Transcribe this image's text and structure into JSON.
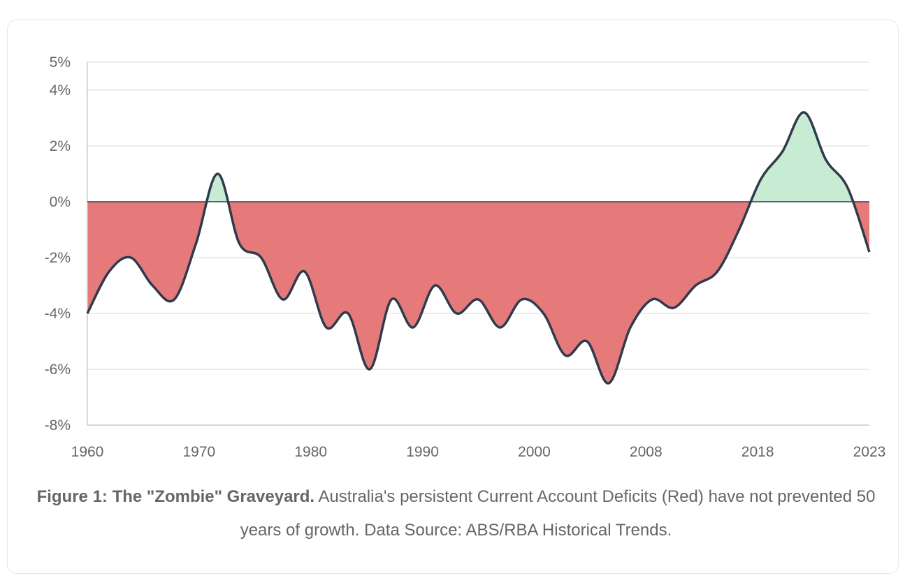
{
  "colors": {
    "deficit_fill": "#e57373",
    "surplus_fill": "#c8ecd3",
    "line": "#2f3a4c",
    "grid": "#e6e6e6",
    "axis": "#cccccc",
    "text": "#666666"
  },
  "caption": {
    "title": "Figure 1: The \"Zombie\" Graveyard.",
    "text": " Australia's persistent Current Account Deficits (Red) have not prevented 50 years of growth. Data Source: ABS/RBA Historical Trends."
  },
  "chart_data": {
    "type": "area",
    "x_tick_labels": [
      "1960",
      "1970",
      "1980",
      "1990",
      "2000",
      "2008",
      "2018",
      "2023"
    ],
    "y_tick_labels": [
      "5%",
      "4%",
      "2%",
      "0%",
      "-2%",
      "-4%",
      "-6%",
      "-8%"
    ],
    "y_ticks": [
      5,
      4,
      2,
      0,
      -2,
      -4,
      -6,
      -8
    ],
    "ylim": [
      -8,
      5
    ],
    "grid": true,
    "baseline": 0,
    "fill_rule": "red below 0, green above 0",
    "series": [
      {
        "values": [
          -4.0,
          -2.5,
          -2.0,
          -3.0,
          -3.5,
          -1.5,
          1.0,
          -1.5,
          -2.0,
          -3.5,
          -2.5,
          -4.5,
          -4.0,
          -6.0,
          -3.5,
          -4.5,
          -3.0,
          -4.0,
          -3.5,
          -4.5,
          -3.5,
          -4.0,
          -5.5,
          -5.0,
          -6.5,
          -4.5,
          -3.5,
          -3.8,
          -3.0,
          -2.5,
          -1.0,
          0.8,
          1.8,
          3.2,
          1.5,
          0.5,
          -1.8
        ]
      }
    ]
  }
}
